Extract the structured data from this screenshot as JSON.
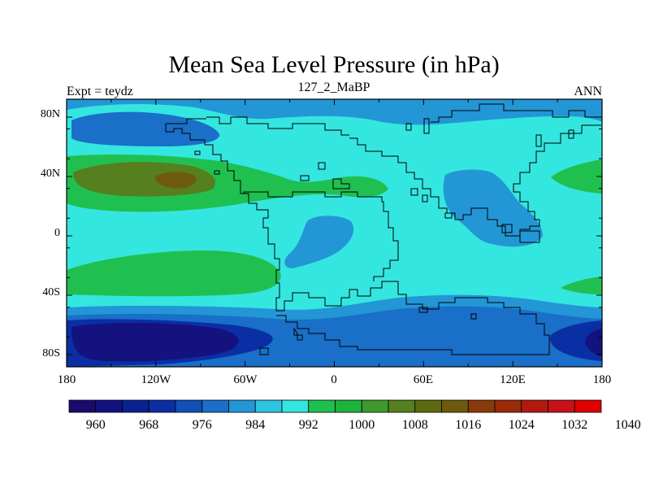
{
  "title": "Mean Sea Level Pressure (in hPa)",
  "subtitle_left": "Expt = teydz",
  "subtitle_center": "127_2_MaBP",
  "subtitle_right": "ANN",
  "x_tick_labels": [
    "180",
    "120W",
    "60W",
    "0",
    "60E",
    "120E",
    "180"
  ],
  "y_tick_labels": [
    "80N",
    "40N",
    "0",
    "40S",
    "80S"
  ],
  "colorbar": {
    "labels": [
      "960",
      "968",
      "976",
      "984",
      "992",
      "1000",
      "1008",
      "1016",
      "1024",
      "1032",
      "1040"
    ],
    "colors": [
      "#1a0a6e",
      "#14127f",
      "#0b2192",
      "#0a2fa4",
      "#1250b8",
      "#1a6fc8",
      "#2396d6",
      "#2ec4e0",
      "#34e6e0",
      "#20c050",
      "#1db43c",
      "#3e9a2e",
      "#567f1e",
      "#5e6a10",
      "#6e5a0c",
      "#8a3a0a",
      "#9a2a0a",
      "#b21a10",
      "#c8121a",
      "#e00000"
    ]
  },
  "colors": {
    "p1000": "#34e6e0",
    "p992": "#2396d6",
    "p984": "#1a6fc8",
    "p976": "#0a2fa4",
    "p968": "#14127f",
    "p1008": "#20c050",
    "p1016": "#567f1e",
    "p1024": "#6e5a0c"
  }
}
